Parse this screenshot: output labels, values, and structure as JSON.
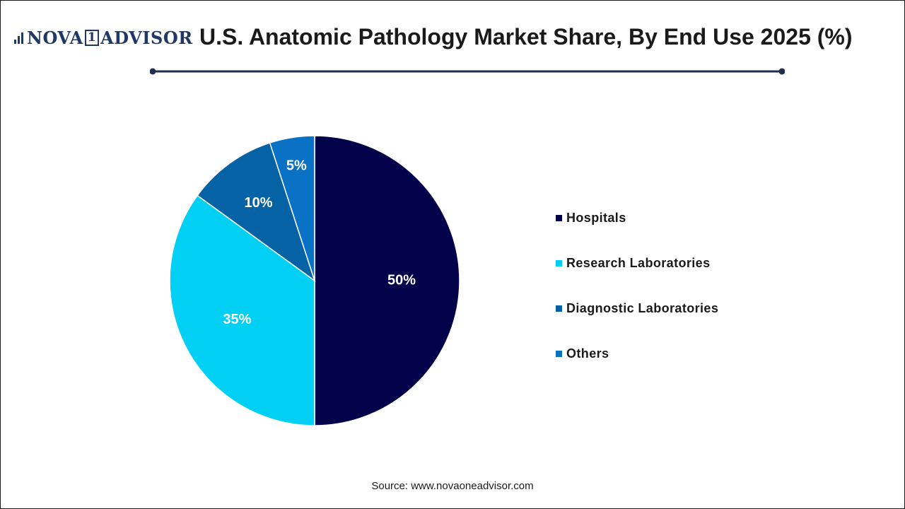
{
  "brand": {
    "prefix": "NOVA",
    "one": "1",
    "suffix": "ADVISOR"
  },
  "colors": {
    "hospitals": "#02024a",
    "research_laboratories": "#01d0f4",
    "diagnostic_laboratories": "#0563a5",
    "others": "#0a72c5",
    "rule": "#1f2d4f"
  },
  "chart_data": {
    "type": "pie",
    "title": "U.S. Anatomic Pathology Market Share, By End Use 2025 (%)",
    "categories": [
      "Hospitals",
      "Research Laboratories",
      "Diagnostic Laboratories",
      "Others"
    ],
    "values": [
      50,
      35,
      10,
      5
    ],
    "data_labels": [
      "50%",
      "35%",
      "10%",
      "5%"
    ],
    "legend_position": "right"
  },
  "source": "Source: www.novaoneadvisor.com"
}
